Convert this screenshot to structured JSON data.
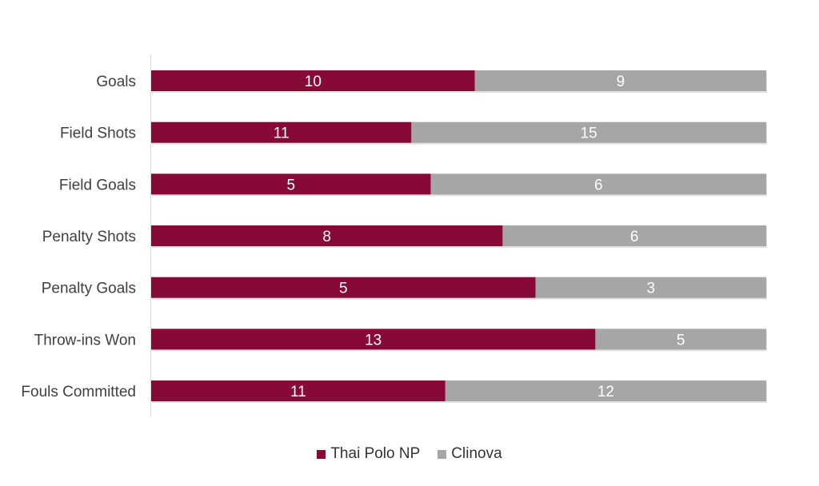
{
  "chart_data": {
    "type": "bar",
    "orientation": "horizontal",
    "stacking": "percent",
    "categories": [
      "Goals",
      "Field Shots",
      "Field Goals",
      "Penalty Shots",
      "Penalty Goals",
      "Throw-ins Won",
      "Fouls Committed"
    ],
    "series": [
      {
        "name": "Thai Polo NP",
        "color": "#860a35",
        "values": [
          10,
          11,
          5,
          8,
          5,
          13,
          11
        ]
      },
      {
        "name": "Clinova",
        "color": "#a6a6a6",
        "values": [
          9,
          15,
          6,
          6,
          3,
          5,
          12
        ]
      }
    ],
    "legend_position": "bottom",
    "grid": false,
    "data_labels": true
  }
}
